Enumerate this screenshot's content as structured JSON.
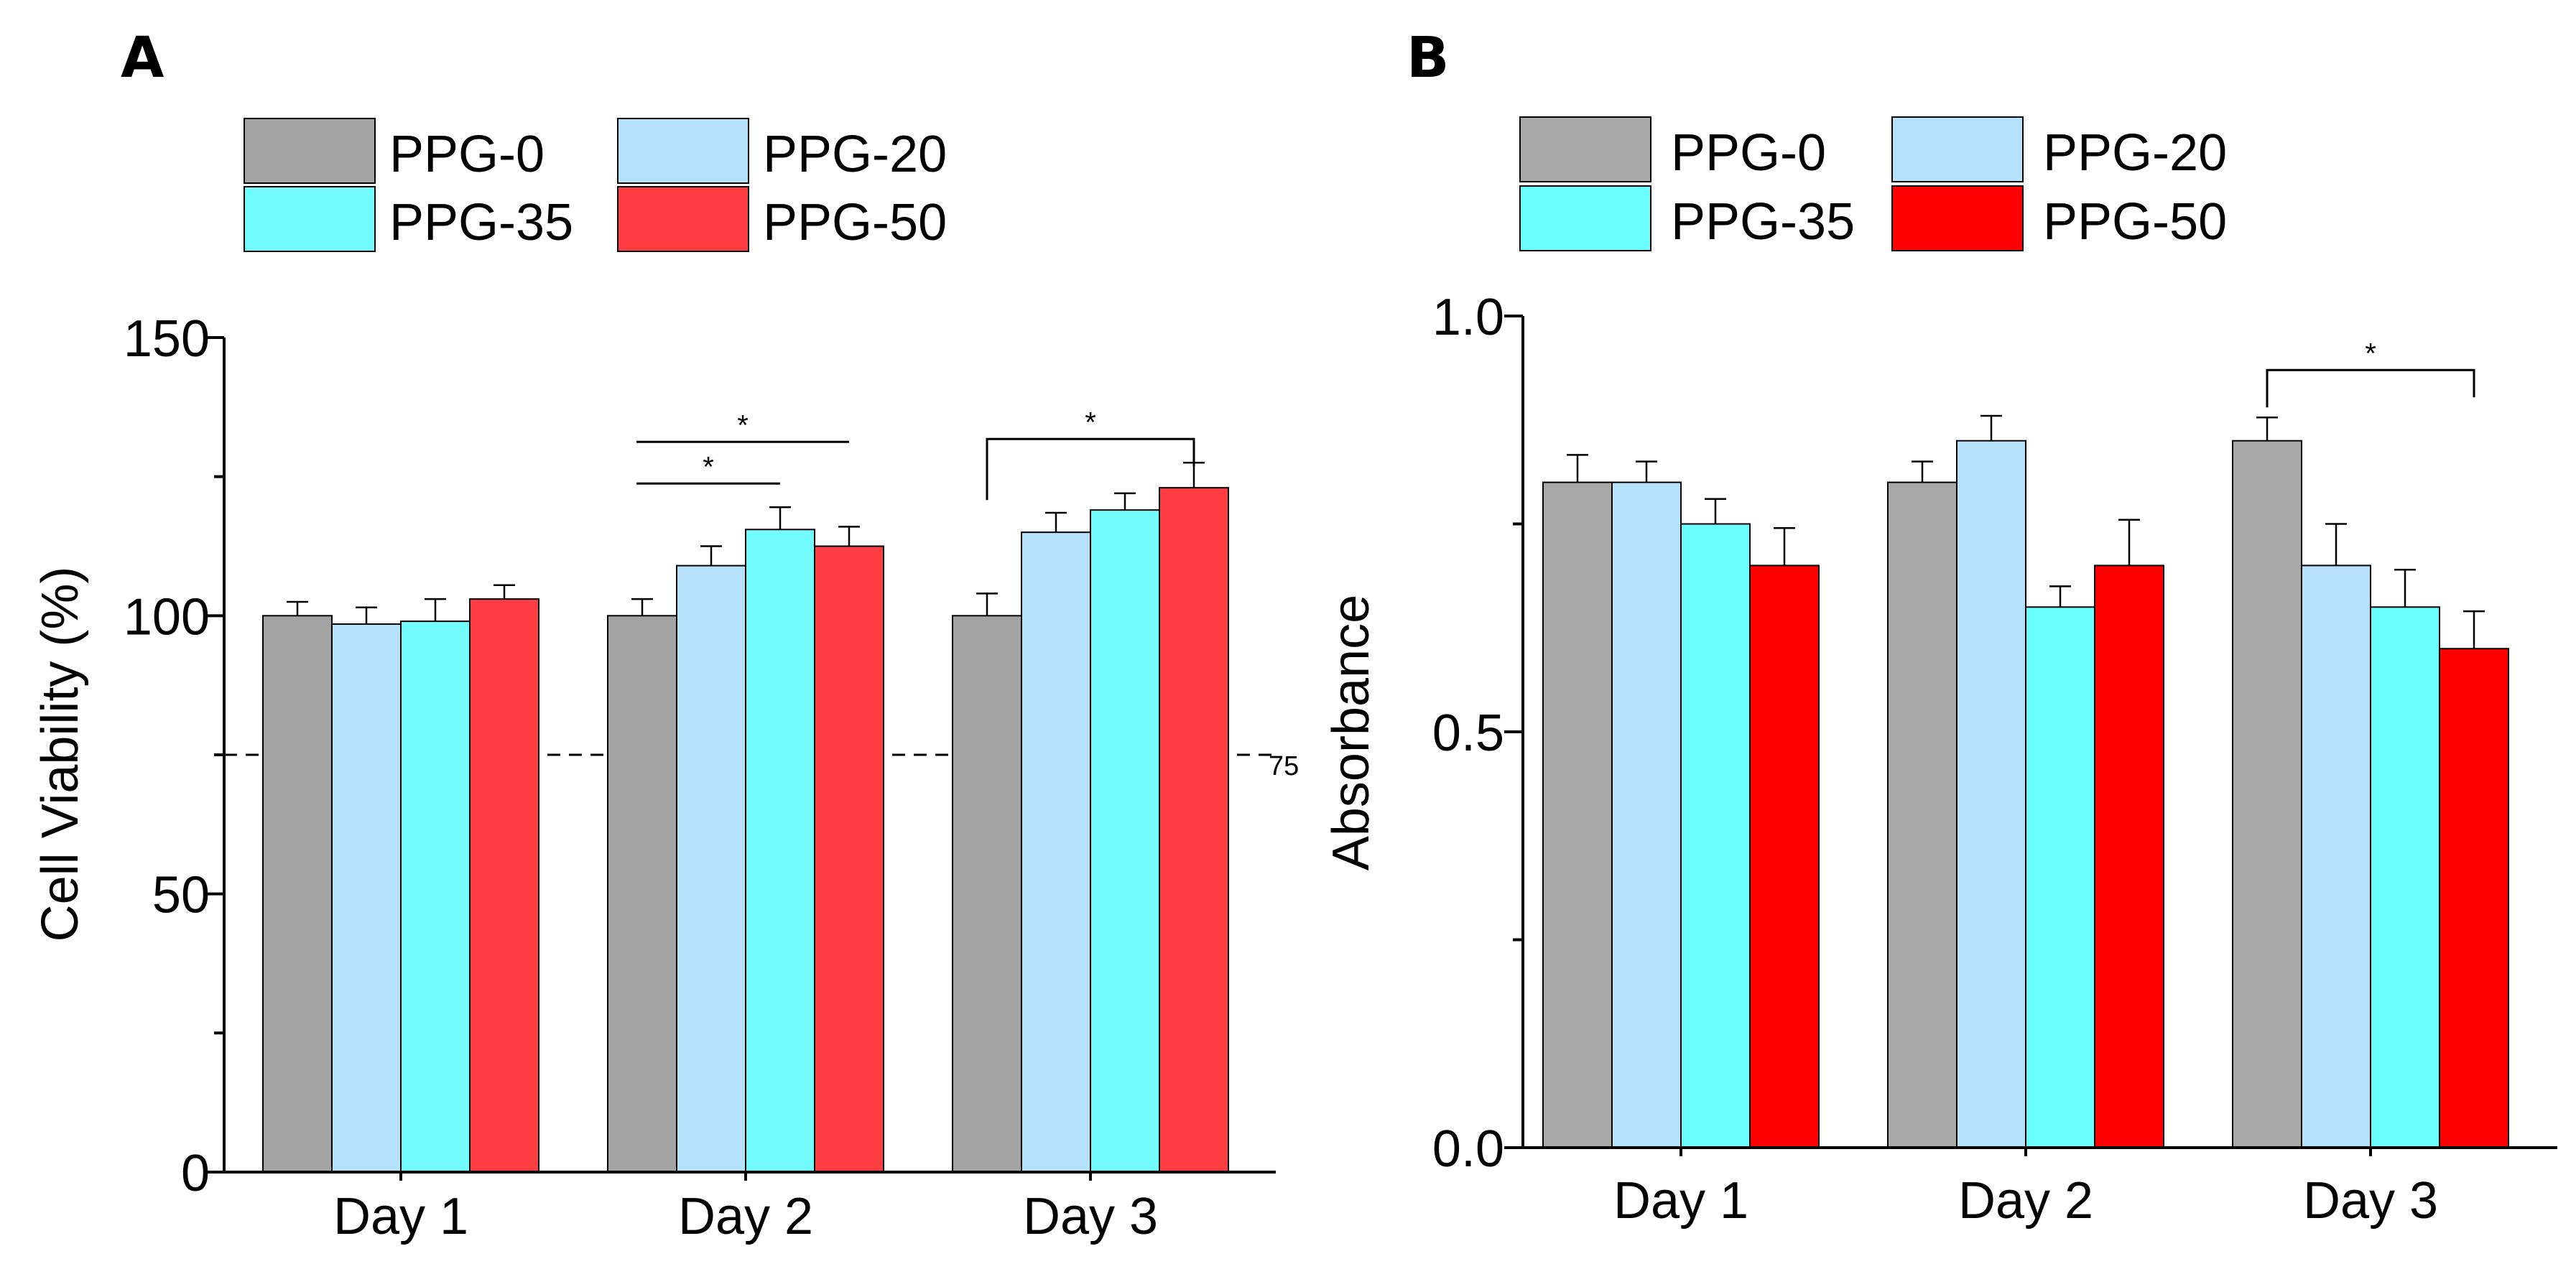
{
  "chart_data": [
    {
      "type": "bar",
      "panel_label": "A",
      "categories": [
        "Day 1",
        "Day 2",
        "Day 3"
      ],
      "series": [
        {
          "name": "PPG-0",
          "color": "#a3a3a3",
          "values": [
            100,
            100,
            100
          ],
          "errors": [
            2.5,
            3,
            4
          ]
        },
        {
          "name": "PPG-20",
          "color": "#b5e1fb",
          "values": [
            98.5,
            109,
            115
          ],
          "errors": [
            3,
            3.5,
            3.5
          ]
        },
        {
          "name": "PPG-35",
          "color": "#73fcfd",
          "values": [
            99,
            115.5,
            119
          ],
          "errors": [
            4,
            4,
            3
          ]
        },
        {
          "name": "PPG-50",
          "color": "#fc3d44",
          "values": [
            103,
            112.5,
            123
          ],
          "errors": [
            2.5,
            3.5,
            4.5
          ]
        }
      ],
      "title": "",
      "xlabel": "",
      "ylabel": "Cell Viability (%)",
      "ylim": [
        0,
        150
      ],
      "yticks": [
        "0",
        "50",
        "100",
        "150"
      ],
      "reference_line": {
        "value": 75,
        "label": "75"
      },
      "significance": [
        {
          "category": "Day 2",
          "from": "PPG-0",
          "to": "PPG-50",
          "level": 1,
          "label": "*",
          "style": "line"
        },
        {
          "category": "Day 2",
          "from": "PPG-0",
          "to": "PPG-35",
          "level": 0,
          "label": "*",
          "style": "line"
        },
        {
          "category": "Day 3",
          "from": "PPG-0",
          "to": "PPG-50",
          "level": 0,
          "label": "*",
          "style": "bracket"
        }
      ],
      "legend_placement": "top-left"
    },
    {
      "type": "bar",
      "panel_label": "B",
      "categories": [
        "Day 1",
        "Day 2",
        "Day 3"
      ],
      "series": [
        {
          "name": "PPG-0",
          "color": "#a8a8a8",
          "values": [
            0.8,
            0.8,
            0.85
          ],
          "errors": [
            0.033,
            0.025,
            0.028
          ]
        },
        {
          "name": "PPG-20",
          "color": "#b5e1fb",
          "values": [
            0.8,
            0.85,
            0.7
          ],
          "errors": [
            0.025,
            0.03,
            0.05
          ]
        },
        {
          "name": "PPG-35",
          "color": "#6cfefe",
          "values": [
            0.75,
            0.65,
            0.65
          ],
          "errors": [
            0.03,
            0.025,
            0.045
          ]
        },
        {
          "name": "PPG-50",
          "color": "#fe0000",
          "values": [
            0.7,
            0.7,
            0.6
          ],
          "errors": [
            0.045,
            0.055,
            0.045
          ]
        }
      ],
      "title": "",
      "xlabel": "",
      "ylabel": "Absorbance",
      "ylim": [
        0,
        1.0
      ],
      "yticks": [
        "0.0",
        "0.5",
        "1.0"
      ],
      "reference_line": null,
      "significance": [
        {
          "category": "Day 3",
          "from": "PPG-0",
          "to": "PPG-50",
          "level": 0,
          "label": "*",
          "style": "bracket"
        }
      ],
      "legend_placement": "top-left"
    }
  ]
}
